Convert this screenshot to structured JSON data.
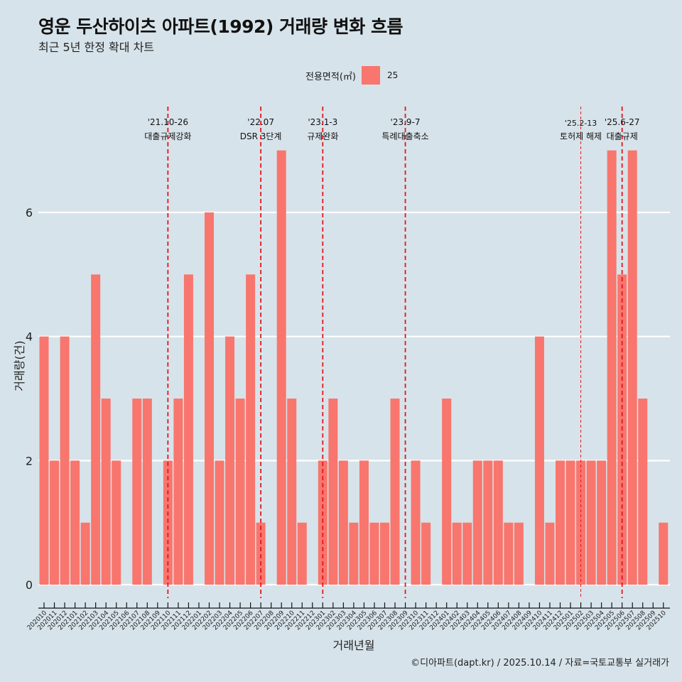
{
  "header": {
    "title": "영운 두산하이츠 아파트(1992) 거래량 변화 흐름",
    "subtitle": "최근 5년 한정 확대 차트"
  },
  "legend": {
    "title": "전용면적(㎡)",
    "items": [
      {
        "label": "25",
        "color": "#f8766d"
      }
    ]
  },
  "caption": "©디아파트(dapt.kr) / 2025.10.14 / 자료=국토교통부 실거래가",
  "chart_data": {
    "type": "bar",
    "title": "영운 두산하이츠 아파트(1992) 거래량 변화 흐름",
    "subtitle": "최근 5년 한정 확대 차트",
    "xlabel": "거래년월",
    "ylabel": "거래량(건)",
    "ylim": [
      0,
      7
    ],
    "yticks": [
      0,
      2,
      4,
      6
    ],
    "grid": true,
    "legend_position": "top",
    "bar_color": "#f8766d",
    "categories": [
      "202010",
      "202011",
      "202012",
      "202101",
      "202102",
      "202103",
      "202104",
      "202105",
      "202106",
      "202107",
      "202108",
      "202109",
      "202110",
      "202111",
      "202112",
      "202201",
      "202202",
      "202203",
      "202204",
      "202205",
      "202206",
      "202207",
      "202208",
      "202209",
      "202210",
      "202211",
      "202212",
      "202301",
      "202302",
      "202303",
      "202304",
      "202305",
      "202306",
      "202307",
      "202308",
      "202309",
      "202310",
      "202311",
      "202312",
      "202401",
      "202402",
      "202403",
      "202404",
      "202405",
      "202406",
      "202407",
      "202408",
      "202409",
      "202410",
      "202411",
      "202412",
      "202501",
      "202502",
      "202503",
      "202504",
      "202505",
      "202506",
      "202507",
      "202508",
      "202509",
      "202510"
    ],
    "series": [
      {
        "name": "25",
        "values": [
          4,
          2,
          4,
          2,
          1,
          5,
          3,
          2,
          0,
          3,
          3,
          0,
          2,
          3,
          5,
          0,
          6,
          2,
          4,
          3,
          5,
          1,
          0,
          7,
          3,
          1,
          0,
          2,
          3,
          2,
          1,
          2,
          1,
          1,
          3,
          0,
          2,
          1,
          0,
          3,
          1,
          1,
          2,
          2,
          2,
          1,
          1,
          0,
          4,
          1,
          2,
          2,
          2,
          2,
          2,
          7,
          5,
          7,
          3,
          0,
          1
        ]
      }
    ],
    "annotations": [
      {
        "month": "202110",
        "date": "'21.10-26",
        "label": "대출규제강화",
        "style": "bold"
      },
      {
        "month": "202207",
        "date": "'22.07",
        "label": "DSR 3단계",
        "style": "bold"
      },
      {
        "month": "202301",
        "date": "'23.1-3",
        "label": "규제완화",
        "style": "bold"
      },
      {
        "month": "202309",
        "date": "'23.9-7",
        "label": "특례대출축소",
        "style": "bold"
      },
      {
        "month": "202502",
        "date": "'25.2-13",
        "label": "토허제 해제",
        "style": "thin"
      },
      {
        "month": "202506",
        "date": "'25.6-27",
        "label": "대출규제",
        "style": "bold"
      }
    ],
    "event_line_color": "#e8141c"
  }
}
